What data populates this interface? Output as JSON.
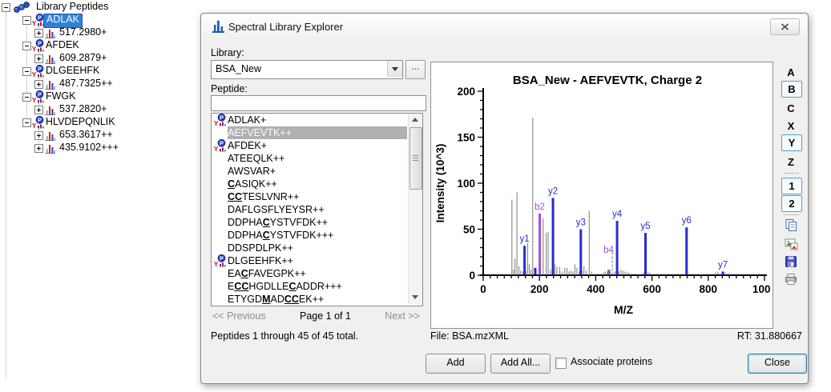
{
  "tree": {
    "root": {
      "label": "Library Peptides",
      "icon": "peptide-list-icon",
      "expander": "-"
    },
    "rows": [
      {
        "depth": 1,
        "icon": "peptide-icon",
        "label": "ADLAK",
        "selected": true,
        "expander": "-"
      },
      {
        "depth": 2,
        "icon": "precursor-icon",
        "label": "517.2980+",
        "expander": "+"
      },
      {
        "depth": 1,
        "icon": "peptide-icon",
        "label": "AFDEK",
        "expander": "-"
      },
      {
        "depth": 2,
        "icon": "precursor-icon",
        "label": "609.2879+",
        "expander": "+"
      },
      {
        "depth": 1,
        "icon": "peptide-icon",
        "label": "DLGEEHFK",
        "expander": "-"
      },
      {
        "depth": 2,
        "icon": "precursor-icon",
        "label": "487.7325++",
        "expander": "+"
      },
      {
        "depth": 1,
        "icon": "peptide-icon",
        "label": "FWGK",
        "expander": "-"
      },
      {
        "depth": 2,
        "icon": "precursor-icon",
        "label": "537.2820+",
        "expander": "+"
      },
      {
        "depth": 1,
        "icon": "peptide-icon",
        "label": "HLVDEPQNLIK",
        "expander": "-"
      },
      {
        "depth": 2,
        "icon": "precursor-icon",
        "label": "653.3617++",
        "expander": "+"
      },
      {
        "depth": 2,
        "icon": "precursor-icon",
        "label": "435.9102+++",
        "expander": "+"
      }
    ]
  },
  "window": {
    "title": "Spectral Library Explorer",
    "icon": "spectral-library-icon",
    "close": "close-window-icon"
  },
  "library": {
    "label": "Library:",
    "value": "BSA_New",
    "browse": "..."
  },
  "peptide_filter": {
    "label": "Peptide:",
    "value": "",
    "placeholder": ""
  },
  "peptide_list": {
    "items": [
      {
        "seq": "ADLAK+",
        "icon": true
      },
      {
        "seq": "AEFVEVTK++",
        "selected": true
      },
      {
        "seq": "AFDEK+",
        "icon": true
      },
      {
        "seq": "ATEEQLK++"
      },
      {
        "seq": "AWSVAR+"
      },
      {
        "seq": "{C}ASIQK++"
      },
      {
        "seq": "{C}{C}TESLVNR++"
      },
      {
        "seq": "DAFLGSFLYEYSR++"
      },
      {
        "seq": "DDPHA{C}YSTVFDK++"
      },
      {
        "seq": "DDPHA{C}YSTVFDK+++"
      },
      {
        "seq": "DDSPDLPK++"
      },
      {
        "seq": "DLGEEHFK++",
        "icon": true
      },
      {
        "seq": "EA{C}FAVEGPK++"
      },
      {
        "seq": "E{C}{C}HGDLLE{C}ADDR+++"
      },
      {
        "seq": "ETYGD{M}AD{C}{C}EK++"
      }
    ]
  },
  "pagination": {
    "previous": "<< Previous",
    "page": "Page 1 of 1",
    "next": "Next >>"
  },
  "status": "Peptides 1 through 45 of 45 total.",
  "ion_buttons": [
    {
      "label": "A",
      "active": false
    },
    {
      "label": "B",
      "active": true
    },
    {
      "label": "C",
      "active": false
    },
    {
      "label": "X",
      "active": false
    },
    {
      "label": "Y",
      "active": true
    },
    {
      "label": "Z",
      "active": false
    },
    {
      "label": "1",
      "active": true
    },
    {
      "label": "2",
      "active": true
    }
  ],
  "toolbar_icons": [
    "copy-icon",
    "copy-image-icon",
    "save-icon",
    "print-icon"
  ],
  "file_info": "File: BSA.mzXML",
  "rt_info": "RT: 31.880667",
  "actions": {
    "add": "Add",
    "add_all": "Add All...",
    "associate": "Associate proteins",
    "associate_checked": false,
    "close": "Close"
  },
  "colors": {
    "selection_blue": "#3080d8",
    "inactive_selection": "#b0b0b0",
    "y_ion": "#2a2ad4",
    "b_ion": "#a050d8",
    "unmatched_peak": "#909090"
  },
  "chart_data": {
    "type": "bar",
    "title": "BSA_New - AEFVEVTK, Charge 2",
    "xlabel": "M/Z",
    "ylabel": "Intensity (10^3)",
    "xlim": [
      0,
      1000
    ],
    "ylim": [
      0,
      200
    ],
    "x_major_tick": 200,
    "x_minor_tick": 25,
    "y_major_tick": 50,
    "y_minor_tick": 10,
    "grid": false,
    "legend": "none",
    "ion_colors": {
      "y": "#2a2ad4",
      "b": "#a050d8",
      "u": "#909090",
      "p": "#909090"
    },
    "peaks": [
      [
        102,
        82,
        "u"
      ],
      [
        108,
        6,
        "u"
      ],
      [
        113,
        18,
        "u"
      ],
      [
        120,
        90,
        "u"
      ],
      [
        127,
        10,
        "u"
      ],
      [
        133,
        5,
        "u"
      ],
      [
        141,
        4,
        "u"
      ],
      [
        147,
        32,
        "y",
        "y1"
      ],
      [
        152,
        5,
        "u"
      ],
      [
        158,
        35,
        "u"
      ],
      [
        164,
        12,
        "u"
      ],
      [
        170,
        6,
        "u"
      ],
      [
        176,
        171,
        "u"
      ],
      [
        185,
        8,
        "y"
      ],
      [
        201,
        67,
        "b",
        "b2"
      ],
      [
        213,
        62,
        "u"
      ],
      [
        224,
        46,
        "u"
      ],
      [
        231,
        47,
        "u"
      ],
      [
        239,
        6,
        "u"
      ],
      [
        248,
        84,
        "y",
        "y2"
      ],
      [
        255,
        12,
        "u"
      ],
      [
        262,
        9,
        "u"
      ],
      [
        272,
        9,
        "u"
      ],
      [
        280,
        4,
        "u"
      ],
      [
        290,
        8,
        "u"
      ],
      [
        298,
        8,
        "u"
      ],
      [
        305,
        4,
        "u"
      ],
      [
        312,
        5,
        "u"
      ],
      [
        319,
        4,
        "u"
      ],
      [
        326,
        12,
        "u"
      ],
      [
        333,
        8,
        "u"
      ],
      [
        341,
        4,
        "u"
      ],
      [
        347,
        50,
        "y",
        "y3"
      ],
      [
        352,
        5,
        "u"
      ],
      [
        358,
        10,
        "u"
      ],
      [
        366,
        5,
        "u"
      ],
      [
        377,
        70,
        "u"
      ],
      [
        385,
        4,
        "u"
      ],
      [
        428,
        3,
        "u"
      ],
      [
        434,
        4,
        "u"
      ],
      [
        440,
        3,
        "u"
      ],
      [
        446,
        6,
        "b",
        "b4",
        20
      ],
      [
        452,
        5,
        "u"
      ],
      [
        459,
        25,
        "p"
      ],
      [
        467,
        4,
        "u"
      ],
      [
        472,
        3,
        "u"
      ],
      [
        476,
        59,
        "y",
        "y4"
      ],
      [
        483,
        4,
        "u"
      ],
      [
        490,
        6,
        "u"
      ],
      [
        497,
        5,
        "u"
      ],
      [
        504,
        4,
        "u"
      ],
      [
        511,
        3,
        "u"
      ],
      [
        518,
        3,
        "u"
      ],
      [
        570,
        3,
        "u"
      ],
      [
        577,
        46,
        "y",
        "y5"
      ],
      [
        585,
        3,
        "u"
      ],
      [
        592,
        3,
        "u"
      ],
      [
        723,
        52,
        "y",
        "y6"
      ],
      [
        730,
        2,
        "u"
      ],
      [
        826,
        3,
        "u"
      ],
      [
        834,
        4,
        "u"
      ],
      [
        842,
        2,
        "u"
      ],
      [
        852,
        4,
        "y",
        "y7"
      ],
      [
        861,
        3,
        "u"
      ],
      [
        871,
        2,
        "u"
      ]
    ]
  }
}
